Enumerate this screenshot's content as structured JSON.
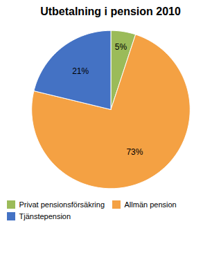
{
  "chart_data": {
    "type": "pie",
    "title": "Utbetalning i pension 2010",
    "categories": [
      "Privat pensionsförsäkring",
      "Allmän pension",
      "Tjänstepension"
    ],
    "values": [
      5,
      73,
      21
    ],
    "value_labels": [
      "5%",
      "73%",
      "21%"
    ],
    "colors": [
      "#9BBB59",
      "#F4A143",
      "#4472C4"
    ],
    "data_labels": true,
    "legend": "lower left"
  }
}
